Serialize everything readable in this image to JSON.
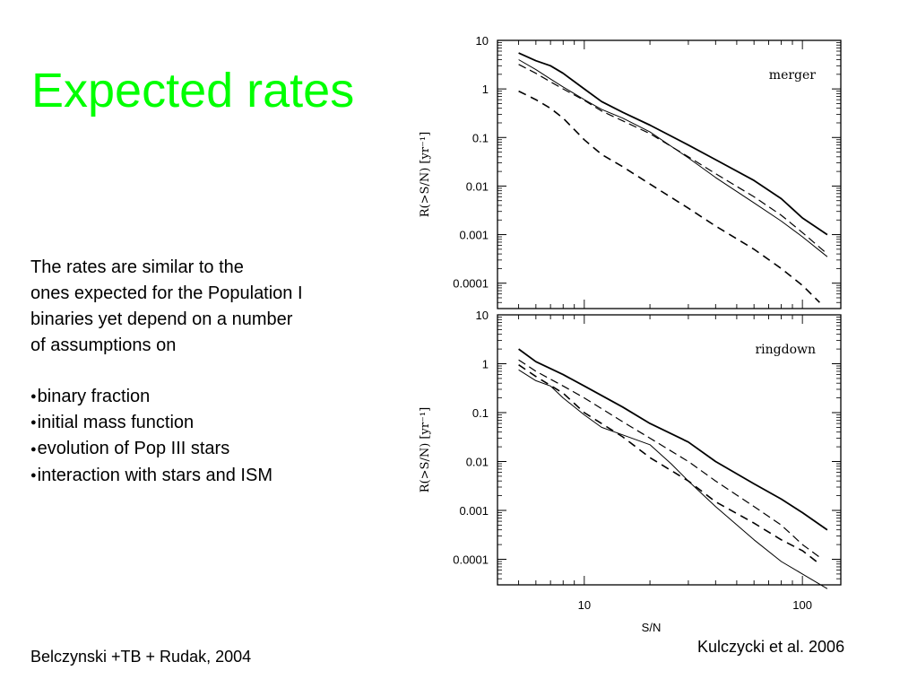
{
  "slide": {
    "title": "Expected rates",
    "intro_lines": [
      "The rates are similar to the",
      "ones expected for the Population I",
      "binaries yet depend on a number",
      "of assumptions on"
    ],
    "bullets": [
      "binary fraction",
      "initial  mass function",
      "evolution of Pop III stars",
      "interaction with stars and ISM"
    ],
    "bullet_glyph": "●",
    "footer_left": "Belczynski +TB + Rudak, 2004",
    "footer_right": "Kulczycki et al. 2006",
    "title_color": "#00ff00"
  },
  "chart_data": [
    {
      "type": "line",
      "panel_label": "merger",
      "xlabel": "",
      "ylabel": "R(>S/N)  [yr⁻¹]",
      "xscale": "log",
      "yscale": "log",
      "xlim": [
        4,
        150
      ],
      "ylim": [
        3e-05,
        10
      ],
      "y_ticks": [
        "10",
        "1",
        "0.1",
        "0.01",
        "0.001",
        "0.0001"
      ],
      "x_ticks": [],
      "series": [
        {
          "style": "solid-thick",
          "x": [
            5,
            6,
            7,
            8,
            10,
            12,
            15,
            20,
            30,
            40,
            60,
            80,
            100,
            130
          ],
          "y": [
            5.5,
            3.8,
            3.0,
            2.1,
            1.0,
            0.55,
            0.33,
            0.18,
            0.07,
            0.035,
            0.013,
            0.0055,
            0.0022,
            0.001
          ]
        },
        {
          "style": "solid-thin",
          "x": [
            5,
            6,
            7,
            8,
            10,
            12,
            15,
            20,
            30,
            40,
            60,
            80,
            100,
            130
          ],
          "y": [
            4.0,
            2.5,
            1.6,
            1.1,
            0.6,
            0.38,
            0.25,
            0.13,
            0.038,
            0.015,
            0.0045,
            0.0019,
            0.0009,
            0.00035
          ]
        },
        {
          "style": "dashed-1",
          "x": [
            5,
            6,
            7,
            8,
            10,
            12,
            15,
            20,
            30,
            40,
            60,
            80,
            100,
            130
          ],
          "y": [
            3.2,
            2.1,
            1.4,
            1.0,
            0.58,
            0.35,
            0.22,
            0.12,
            0.04,
            0.018,
            0.006,
            0.0025,
            0.0011,
            0.0004
          ]
        },
        {
          "style": "dashed-2",
          "x": [
            5,
            6,
            7,
            8,
            10,
            12,
            15,
            20,
            30,
            40,
            60,
            80,
            100,
            120
          ],
          "y": [
            0.9,
            0.6,
            0.4,
            0.25,
            0.09,
            0.045,
            0.025,
            0.011,
            0.0035,
            0.0015,
            0.0005,
            0.0002,
            9e-05,
            4e-05
          ]
        }
      ]
    },
    {
      "type": "line",
      "panel_label": "ringdown",
      "xlabel": "S/N",
      "ylabel": "R(>S/N)  [yr⁻¹]",
      "xscale": "log",
      "yscale": "log",
      "xlim": [
        4,
        150
      ],
      "ylim": [
        3e-05,
        10
      ],
      "y_ticks": [
        "10",
        "1",
        "0.1",
        "0.01",
        "0.001",
        "0.0001"
      ],
      "x_ticks": [
        "10",
        "100"
      ],
      "series": [
        {
          "style": "solid-thick",
          "x": [
            5,
            6,
            8,
            10,
            15,
            20,
            30,
            40,
            60,
            80,
            100,
            130
          ],
          "y": [
            2.0,
            1.1,
            0.6,
            0.35,
            0.13,
            0.06,
            0.025,
            0.01,
            0.0035,
            0.0017,
            0.0009,
            0.0004
          ]
        },
        {
          "style": "solid-thin",
          "x": [
            5,
            6,
            7,
            8,
            10,
            12,
            15,
            20,
            25,
            30,
            40,
            60,
            80,
            100,
            130
          ],
          "y": [
            0.75,
            0.45,
            0.35,
            0.2,
            0.09,
            0.05,
            0.035,
            0.022,
            0.009,
            0.004,
            0.0012,
            0.00025,
            9e-05,
            5e-05,
            2.5e-05
          ]
        },
        {
          "style": "dashed-1",
          "x": [
            5,
            6,
            8,
            10,
            15,
            20,
            30,
            40,
            60,
            80,
            100,
            120
          ],
          "y": [
            1.2,
            0.7,
            0.35,
            0.2,
            0.065,
            0.03,
            0.01,
            0.004,
            0.0012,
            0.0005,
            0.0002,
            0.00011
          ]
        },
        {
          "style": "dashed-2",
          "x": [
            5,
            6,
            8,
            10,
            15,
            20,
            30,
            40,
            60,
            80,
            100,
            120
          ],
          "y": [
            0.95,
            0.55,
            0.25,
            0.1,
            0.032,
            0.012,
            0.004,
            0.0015,
            0.00055,
            0.00025,
            0.00015,
            8e-05
          ]
        }
      ]
    }
  ]
}
